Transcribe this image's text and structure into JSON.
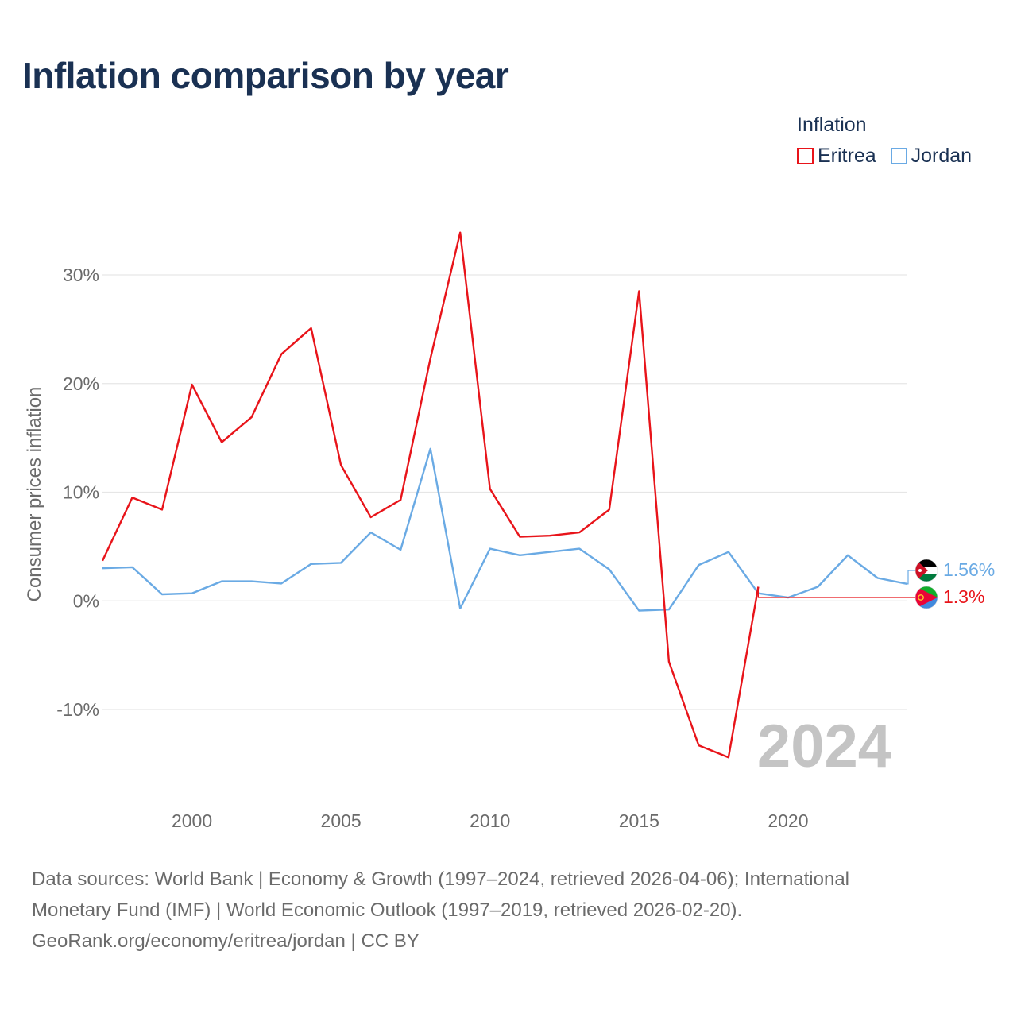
{
  "title": "Inflation comparison by year",
  "legend": {
    "title": "Inflation",
    "items": [
      {
        "label": "Eritrea",
        "color": "#e8141a"
      },
      {
        "label": "Jordan",
        "color": "#6aaae4"
      }
    ]
  },
  "current_year": "2024",
  "end_labels": [
    {
      "text": "1.56%",
      "color": "#6aaae4",
      "flag_icon": "jordan-flag-icon"
    },
    {
      "text": "1.3%",
      "color": "#e8141a",
      "flag_icon": "eritrea-flag-icon"
    }
  ],
  "sources": {
    "line1": "Data sources: World Bank | Economy & Growth (1997–2024, retrieved 2026-04-06); International",
    "line2": "Monetary Fund (IMF) | World Economic Outlook (1997–2019, retrieved 2026-02-20).",
    "line3": "GeoRank.org/economy/eritrea/jordan | CC BY"
  },
  "chart_data": {
    "type": "line",
    "ylabel": "Consumer prices inflation",
    "xlabel": "",
    "xlim": [
      1997,
      2024
    ],
    "ylim": [
      -15,
      35
    ],
    "x_ticks": [
      2000,
      2005,
      2010,
      2015,
      2020
    ],
    "y_ticks": [
      {
        "value": 30,
        "label": "30%"
      },
      {
        "value": 20,
        "label": "20%"
      },
      {
        "value": 10,
        "label": "10%"
      },
      {
        "value": 0,
        "label": "0%"
      },
      {
        "value": -10,
        "label": "-10%"
      }
    ],
    "grid": true,
    "series": [
      {
        "name": "Eritrea",
        "color": "#e8141a",
        "x": [
          1997,
          1998,
          1999,
          2000,
          2001,
          2002,
          2003,
          2004,
          2005,
          2006,
          2007,
          2008,
          2009,
          2010,
          2011,
          2012,
          2013,
          2014,
          2015,
          2016,
          2017,
          2018,
          2019
        ],
        "values": [
          3.7,
          9.5,
          8.4,
          19.9,
          14.6,
          16.9,
          22.7,
          25.1,
          12.5,
          7.7,
          9.3,
          22.3,
          33.9,
          10.3,
          5.9,
          6.0,
          6.3,
          8.4,
          28.5,
          -5.6,
          -13.3,
          -14.4,
          1.3
        ],
        "end_value": 1.3
      },
      {
        "name": "Jordan",
        "color": "#6aaae4",
        "x": [
          1997,
          1998,
          1999,
          2000,
          2001,
          2002,
          2003,
          2004,
          2005,
          2006,
          2007,
          2008,
          2009,
          2010,
          2011,
          2012,
          2013,
          2014,
          2015,
          2016,
          2017,
          2018,
          2019,
          2020,
          2021,
          2022,
          2023,
          2024
        ],
        "values": [
          3.0,
          3.1,
          0.6,
          0.7,
          1.8,
          1.8,
          1.6,
          3.4,
          3.5,
          6.3,
          4.7,
          14.0,
          -0.7,
          4.8,
          4.2,
          4.5,
          4.8,
          2.9,
          -0.9,
          -0.8,
          3.3,
          4.5,
          0.7,
          0.3,
          1.3,
          4.2,
          2.1,
          1.56
        ],
        "end_value": 1.56
      }
    ]
  }
}
